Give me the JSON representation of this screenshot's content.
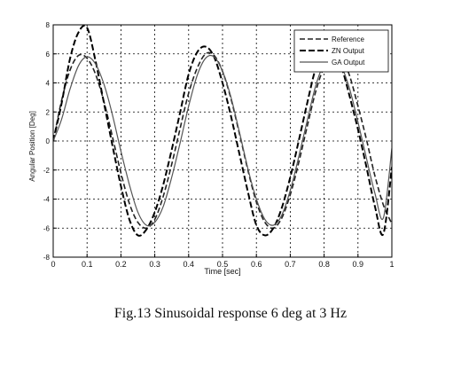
{
  "caption": "Fig.13 Sinusoidal response 6 deg at 3 Hz",
  "chart_data": {
    "type": "line",
    "title": "",
    "xlabel": "Time [sec]",
    "ylabel": "Angular Position [Deg]",
    "xlim": [
      0,
      1
    ],
    "ylim": [
      -8,
      8
    ],
    "grid": true,
    "grid_style": "dotted",
    "legend_position": "top-right",
    "x_ticks": [
      0,
      0.1,
      0.2,
      0.3,
      0.4,
      0.5,
      0.6,
      0.7,
      0.8,
      0.9,
      1
    ],
    "x_tick_labels": [
      "0",
      "0.1",
      "0.2",
      "0.3",
      "0.4",
      "0.5",
      "0.6",
      "0.7",
      "0.8",
      "0.9",
      "1"
    ],
    "y_ticks": [
      8,
      6,
      4,
      2,
      0,
      -2,
      -4,
      -6,
      -8
    ],
    "y_tick_labels": [
      "8",
      "6",
      "4",
      "2",
      "0",
      "-2",
      "-4",
      "-6",
      "-8"
    ],
    "x": [
      0,
      0.025,
      0.05,
      0.075,
      0.1,
      0.125,
      0.15,
      0.175,
      0.2,
      0.225,
      0.25,
      0.275,
      0.3,
      0.325,
      0.35,
      0.375,
      0.4,
      0.425,
      0.45,
      0.475,
      0.5,
      0.525,
      0.55,
      0.575,
      0.6,
      0.625,
      0.65,
      0.675,
      0.7,
      0.725,
      0.75,
      0.775,
      0.8,
      0.825,
      0.85,
      0.875,
      0.9,
      0.925,
      0.95,
      0.975,
      1
    ],
    "series": [
      {
        "name": "Reference",
        "color": "#222222",
        "dash": "6,3",
        "values": [
          0,
          2.8,
          4.9,
          5.9,
          5.7,
          4.6,
          2.7,
          0.3,
          -2.2,
          -4.3,
          -5.6,
          -6.0,
          -5.4,
          -3.8,
          -1.6,
          0.9,
          3.3,
          5.0,
          6.0,
          5.9,
          4.8,
          2.9,
          0.5,
          -2.0,
          -4.2,
          -5.6,
          -6.0,
          -5.3,
          -3.7,
          -1.5,
          1.0,
          3.4,
          5.1,
          6.0,
          5.8,
          4.5,
          2.4,
          0.1,
          -2.4,
          -4.4,
          -5.7
        ]
      },
      {
        "name": "ZN Output",
        "color": "#000000",
        "dash": "7,3",
        "values": [
          0,
          2.6,
          5.7,
          7.5,
          7.8,
          5.5,
          2.6,
          -0.3,
          -3.1,
          -5.4,
          -6.5,
          -6.1,
          -4.9,
          -3.0,
          -0.6,
          2.0,
          4.6,
          6.1,
          6.5,
          5.8,
          4.0,
          1.7,
          -0.9,
          -3.5,
          -5.8,
          -6.5,
          -6.0,
          -4.6,
          -2.5,
          0.0,
          2.6,
          5.0,
          6.2,
          6.4,
          5.2,
          3.1,
          0.8,
          -1.8,
          -4.5,
          -6.4,
          -1.8
        ]
      },
      {
        "name": "GA Output",
        "color": "#555555",
        "dash": "",
        "values": [
          0,
          1.5,
          3.6,
          5.2,
          5.8,
          5.3,
          3.9,
          1.8,
          -0.7,
          -3.0,
          -4.9,
          -5.8,
          -5.6,
          -4.5,
          -2.5,
          -0.1,
          2.4,
          4.5,
          5.7,
          5.8,
          4.8,
          3.0,
          0.6,
          -1.9,
          -4.0,
          -5.4,
          -5.8,
          -5.1,
          -3.4,
          -1.1,
          1.4,
          3.8,
          5.3,
          5.8,
          5.2,
          3.6,
          1.3,
          -1.2,
          -3.6,
          -5.3,
          -0.5
        ]
      }
    ]
  }
}
